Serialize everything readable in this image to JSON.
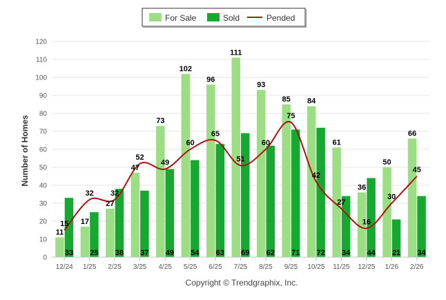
{
  "chart_data": {
    "type": "bar",
    "categories": [
      "12/24",
      "1/25",
      "2/25",
      "3/25",
      "4/25",
      "5/25",
      "6/25",
      "7/25",
      "8/25",
      "9/25",
      "10/25",
      "11/25",
      "12/25",
      "1/26",
      "2/26"
    ],
    "series": [
      {
        "name": "For Sale",
        "type": "bar",
        "color": "#9bde83",
        "values": [
          11,
          17,
          27,
          47,
          73,
          102,
          96,
          111,
          93,
          85,
          84,
          61,
          36,
          50,
          66
        ]
      },
      {
        "name": "Sold",
        "type": "bar",
        "color": "#17a832",
        "values": [
          33,
          25,
          38,
          37,
          49,
          54,
          63,
          69,
          62,
          71,
          72,
          34,
          44,
          21,
          34
        ]
      },
      {
        "name": "Pended",
        "type": "line",
        "color": "#b01010",
        "values": [
          15,
          32,
          32,
          52,
          49,
          60,
          65,
          51,
          60,
          75,
          42,
          27,
          16,
          30,
          45
        ]
      }
    ],
    "title": "",
    "xlabel": "",
    "ylabel": "Number of Homes",
    "ylim": [
      0,
      120
    ],
    "yticks": [
      0,
      10,
      20,
      30,
      40,
      50,
      60,
      70,
      80,
      90,
      100,
      110,
      120
    ],
    "grid": true,
    "legend_position": "top-center",
    "footer": "Copyright © Trendgraphix, Inc."
  }
}
